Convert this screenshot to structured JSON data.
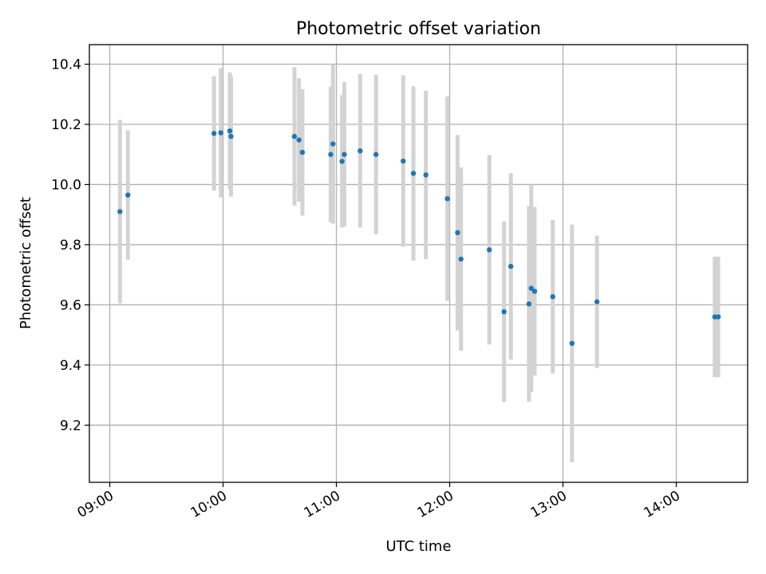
{
  "chart_data": {
    "type": "scatter",
    "title": "Photometric offset variation",
    "xlabel": "UTC time",
    "ylabel": "Photometric offset",
    "x_unit": "hours UTC",
    "xlim": [
      8.82,
      14.63
    ],
    "ylim": [
      9.01,
      10.465
    ],
    "grid": true,
    "x_ticks": [
      {
        "value": 9,
        "label": "09:00"
      },
      {
        "value": 10,
        "label": "10:00"
      },
      {
        "value": 11,
        "label": "11:00"
      },
      {
        "value": 12,
        "label": "12:00"
      },
      {
        "value": 13,
        "label": "13:00"
      },
      {
        "value": 14,
        "label": "14:00"
      }
    ],
    "y_ticks": [
      {
        "value": 9.2,
        "label": "9.2"
      },
      {
        "value": 9.4,
        "label": "9.4"
      },
      {
        "value": 9.6,
        "label": "9.6"
      },
      {
        "value": 9.8,
        "label": "9.8"
      },
      {
        "value": 10.0,
        "label": "10.0"
      },
      {
        "value": 10.2,
        "label": "10.2"
      },
      {
        "value": 10.4,
        "label": "10.4"
      }
    ],
    "colors": {
      "points": "#1f77b4",
      "errorbars": "#d3d3d3",
      "grid": "#b0b0b0"
    },
    "points": [
      {
        "x": 9.09,
        "y": 9.91,
        "err": 0.305
      },
      {
        "x": 9.16,
        "y": 9.965,
        "err": 0.215
      },
      {
        "x": 9.92,
        "y": 10.17,
        "err": 0.19
      },
      {
        "x": 9.98,
        "y": 10.172,
        "err": 0.215
      },
      {
        "x": 10.06,
        "y": 10.178,
        "err": 0.195
      },
      {
        "x": 10.07,
        "y": 10.16,
        "err": 0.2
      },
      {
        "x": 10.63,
        "y": 10.16,
        "err": 0.23
      },
      {
        "x": 10.67,
        "y": 10.148,
        "err": 0.205
      },
      {
        "x": 10.7,
        "y": 10.107,
        "err": 0.21
      },
      {
        "x": 10.95,
        "y": 10.1,
        "err": 0.225
      },
      {
        "x": 10.97,
        "y": 10.135,
        "err": 0.265
      },
      {
        "x": 11.05,
        "y": 10.077,
        "err": 0.22
      },
      {
        "x": 11.07,
        "y": 10.1,
        "err": 0.24
      },
      {
        "x": 11.21,
        "y": 10.112,
        "err": 0.255
      },
      {
        "x": 11.35,
        "y": 10.1,
        "err": 0.265
      },
      {
        "x": 11.59,
        "y": 10.078,
        "err": 0.285
      },
      {
        "x": 11.68,
        "y": 10.037,
        "err": 0.29
      },
      {
        "x": 11.79,
        "y": 10.032,
        "err": 0.28
      },
      {
        "x": 11.98,
        "y": 9.953,
        "err": 0.34
      },
      {
        "x": 12.07,
        "y": 9.84,
        "err": 0.325
      },
      {
        "x": 12.1,
        "y": 9.752,
        "err": 0.305
      },
      {
        "x": 12.35,
        "y": 9.783,
        "err": 0.315
      },
      {
        "x": 12.48,
        "y": 9.577,
        "err": 0.3
      },
      {
        "x": 12.54,
        "y": 9.728,
        "err": 0.31
      },
      {
        "x": 12.7,
        "y": 9.603,
        "err": 0.325
      },
      {
        "x": 12.72,
        "y": 9.655,
        "err": 0.345
      },
      {
        "x": 12.75,
        "y": 9.645,
        "err": 0.28
      },
      {
        "x": 12.91,
        "y": 9.627,
        "err": 0.255
      },
      {
        "x": 13.08,
        "y": 9.472,
        "err": 0.395
      },
      {
        "x": 13.3,
        "y": 9.61,
        "err": 0.22
      },
      {
        "x": 14.34,
        "y": 9.56,
        "err": 0.2
      },
      {
        "x": 14.37,
        "y": 9.56,
        "err": 0.2
      }
    ]
  }
}
